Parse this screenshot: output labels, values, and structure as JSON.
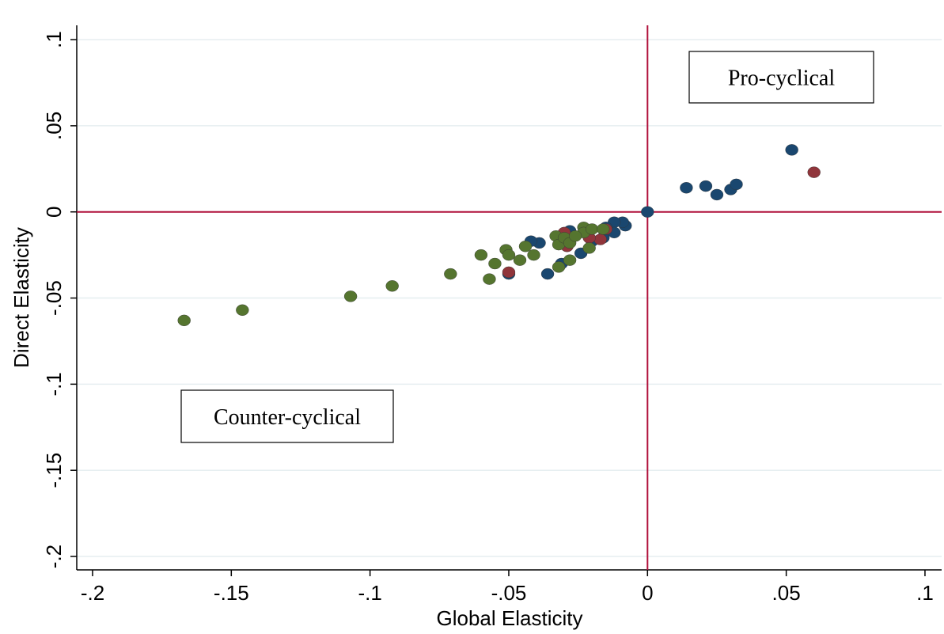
{
  "chart_data": {
    "type": "scatter",
    "x_label": "Global Elasticity",
    "y_label": "Direct Elasticity",
    "annotations": [
      "Pro-cyclical",
      "Counter-cyclical"
    ],
    "xlim": [
      -0.2057,
      0.106
    ],
    "ylim": [
      -0.2078,
      0.1083
    ],
    "xticks": [
      {
        "value": -0.2,
        "label": "-.2"
      },
      {
        "value": -0.15,
        "label": "-.15"
      },
      {
        "value": -0.1,
        "label": "-.1"
      },
      {
        "value": -0.05,
        "label": "-.05"
      },
      0,
      {
        "value": 0.05,
        "label": ".05"
      },
      {
        "value": 0.1,
        "label": ".1"
      }
    ],
    "yticks": [
      {
        "value": -0.2,
        "label": "-.2"
      },
      {
        "value": -0.15,
        "label": "-.15"
      },
      {
        "value": -0.1,
        "label": "-.1"
      },
      {
        "value": -0.05,
        "label": "-.05"
      },
      0,
      {
        "value": 0.05,
        "label": ".05"
      },
      {
        "value": 0.1,
        "label": ".1"
      }
    ],
    "grid": true,
    "hlines": [
      0
    ],
    "vlines": [
      0
    ],
    "ref_color": "#b0103a",
    "series": [
      {
        "color": "#1a476f",
        "x": [
          0.052,
          0.014,
          0.021,
          0.025,
          0.03,
          0.032,
          0,
          -0.008,
          -0.009,
          -0.012,
          -0.012,
          -0.015,
          -0.016,
          -0.02,
          -0.024,
          -0.031,
          -0.036,
          -0.039,
          -0.042,
          -0.05,
          -0.028
        ],
        "values": [
          0.036,
          0.014,
          0.015,
          0.01,
          0.013,
          0.016,
          0,
          -0.008,
          -0.006,
          -0.006,
          -0.012,
          -0.009,
          -0.015,
          -0.017,
          -0.024,
          -0.03,
          -0.036,
          -0.018,
          -0.017,
          -0.036,
          -0.011
        ]
      },
      {
        "color": "#90353b",
        "x": [
          0.06,
          -0.05,
          -0.017,
          -0.015,
          -0.029,
          -0.03,
          -0.021
        ],
        "values": [
          0.023,
          -0.035,
          -0.016,
          -0.01,
          -0.02,
          -0.012,
          -0.015
        ]
      },
      {
        "color": "#55752f",
        "x": [
          -0.167,
          -0.146,
          -0.107,
          -0.092,
          -0.071,
          -0.06,
          -0.057,
          -0.055,
          -0.051,
          -0.05,
          -0.046,
          -0.044,
          -0.041,
          -0.033,
          -0.032,
          -0.032,
          -0.03,
          -0.028,
          -0.028,
          -0.023,
          -0.023,
          -0.02,
          -0.021,
          -0.016,
          -0.026
        ],
        "values": [
          -0.063,
          -0.057,
          -0.049,
          -0.043,
          -0.036,
          -0.025,
          -0.039,
          -0.03,
          -0.022,
          -0.025,
          -0.028,
          -0.02,
          -0.025,
          -0.014,
          -0.019,
          -0.032,
          -0.015,
          -0.028,
          -0.018,
          -0.009,
          -0.012,
          -0.01,
          -0.021,
          -0.01,
          -0.014
        ]
      }
    ]
  }
}
